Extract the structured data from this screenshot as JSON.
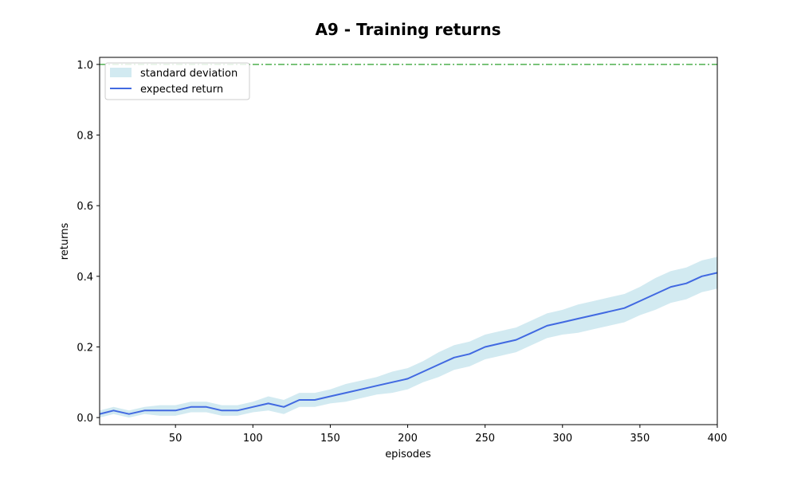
{
  "chart_data": {
    "type": "line",
    "title": "A9 - Training returns",
    "xlabel": "episodes",
    "ylabel": "returns",
    "xlim": [
      1,
      400
    ],
    "ylim": [
      -0.02,
      1.02
    ],
    "xticks": [
      50,
      100,
      150,
      200,
      250,
      300,
      350,
      400
    ],
    "yticks": [
      "0.0",
      "0.2",
      "0.4",
      "0.6",
      "0.8",
      "1.0"
    ],
    "legend_position": "upper-left",
    "grid": false,
    "reference_line": {
      "y": 1.0,
      "color": "#2ca02c",
      "style": "dash-dot"
    },
    "series": [
      {
        "name": "standard deviation",
        "kind": "band",
        "color": "#add8e6"
      },
      {
        "name": "expected return",
        "kind": "line",
        "color": "#4169e1",
        "x": [
          1,
          10,
          20,
          30,
          40,
          50,
          60,
          70,
          80,
          90,
          100,
          110,
          120,
          130,
          140,
          150,
          160,
          170,
          180,
          190,
          200,
          210,
          220,
          230,
          240,
          250,
          260,
          270,
          280,
          290,
          300,
          310,
          320,
          330,
          340,
          350,
          360,
          370,
          380,
          390,
          400
        ],
        "values": [
          0.01,
          0.02,
          0.01,
          0.02,
          0.02,
          0.02,
          0.03,
          0.03,
          0.02,
          0.02,
          0.03,
          0.04,
          0.03,
          0.05,
          0.05,
          0.06,
          0.07,
          0.08,
          0.09,
          0.1,
          0.11,
          0.13,
          0.15,
          0.17,
          0.18,
          0.2,
          0.21,
          0.22,
          0.24,
          0.26,
          0.27,
          0.28,
          0.29,
          0.3,
          0.31,
          0.33,
          0.35,
          0.37,
          0.38,
          0.4,
          0.41
        ],
        "std": [
          0.01,
          0.01,
          0.01,
          0.01,
          0.015,
          0.015,
          0.015,
          0.015,
          0.015,
          0.015,
          0.015,
          0.02,
          0.02,
          0.02,
          0.02,
          0.02,
          0.025,
          0.025,
          0.025,
          0.03,
          0.03,
          0.03,
          0.035,
          0.035,
          0.035,
          0.035,
          0.035,
          0.035,
          0.035,
          0.035,
          0.035,
          0.04,
          0.04,
          0.04,
          0.04,
          0.04,
          0.045,
          0.045,
          0.045,
          0.045,
          0.045
        ]
      }
    ]
  }
}
